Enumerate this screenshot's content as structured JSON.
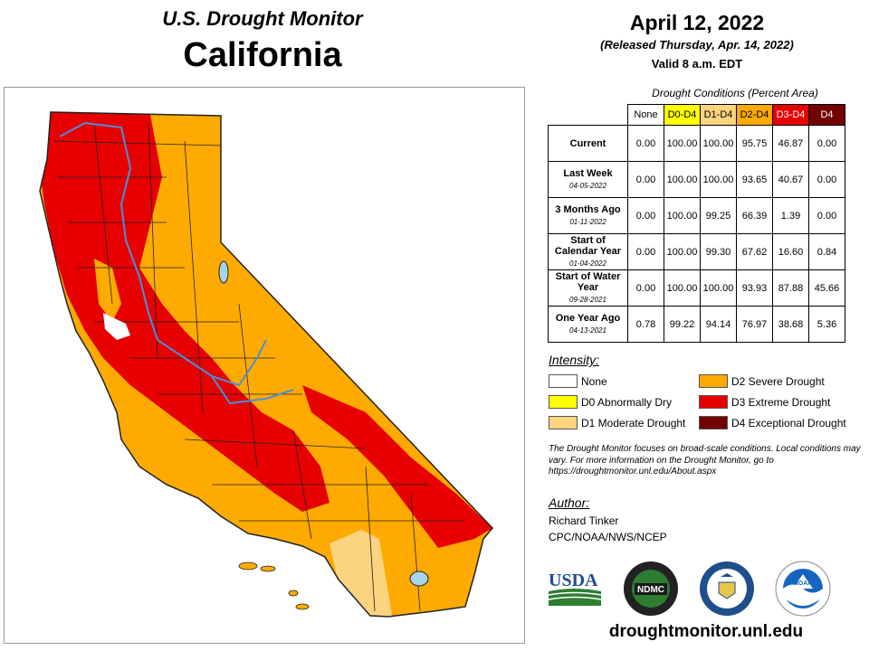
{
  "header": {
    "subtitle": "U.S. Drought Monitor",
    "state": "California",
    "date": "April 12, 2022",
    "released": "(Released Thursday, Apr. 14, 2022)",
    "valid": "Valid 8 a.m. EDT"
  },
  "table": {
    "caption": "Drought Conditions (Percent Area)",
    "columns": [
      {
        "label": "None",
        "bg": "#ffffff",
        "fg": "#000000"
      },
      {
        "label": "D0-D4",
        "bg": "#ffff00",
        "fg": "#000000"
      },
      {
        "label": "D1-D4",
        "bg": "#fcd37f",
        "fg": "#000000"
      },
      {
        "label": "D2-D4",
        "bg": "#ffaa00",
        "fg": "#000000"
      },
      {
        "label": "D3-D4",
        "bg": "#e60000",
        "fg": "#ffffff"
      },
      {
        "label": "D4",
        "bg": "#730000",
        "fg": "#ffffff"
      }
    ],
    "rows": [
      {
        "label": "Current",
        "date": "",
        "values": [
          "0.00",
          "100.00",
          "100.00",
          "95.75",
          "46.87",
          "0.00"
        ]
      },
      {
        "label": "Last Week",
        "date": "04-05-2022",
        "values": [
          "0.00",
          "100.00",
          "100.00",
          "93.65",
          "40.67",
          "0.00"
        ]
      },
      {
        "label": "3 Months Ago",
        "date": "01-11-2022",
        "values": [
          "0.00",
          "100.00",
          "99.25",
          "66.39",
          "1.39",
          "0.00"
        ]
      },
      {
        "label": "Start of Calendar Year",
        "date": "01-04-2022",
        "values": [
          "0.00",
          "100.00",
          "99.30",
          "67.62",
          "16.60",
          "0.84"
        ]
      },
      {
        "label": "Start of Water Year",
        "date": "09-28-2021",
        "values": [
          "0.00",
          "100.00",
          "100.00",
          "93.93",
          "87.88",
          "45.66"
        ]
      },
      {
        "label": "One Year Ago",
        "date": "04-13-2021",
        "values": [
          "0.78",
          "99.22",
          "94.14",
          "76.97",
          "38.68",
          "5.36"
        ]
      }
    ]
  },
  "legend": {
    "title": "Intensity:",
    "items": [
      {
        "label": "None",
        "color": "#ffffff"
      },
      {
        "label": "D0 Abnormally Dry",
        "color": "#ffff00"
      },
      {
        "label": "D1 Moderate Drought",
        "color": "#fcd37f"
      },
      {
        "label": "D2 Severe Drought",
        "color": "#ffaa00"
      },
      {
        "label": "D3 Extreme Drought",
        "color": "#e60000"
      },
      {
        "label": "D4 Exceptional Drought",
        "color": "#730000"
      }
    ]
  },
  "note": "The Drought Monitor focuses on broad-scale conditions. Local conditions may vary. For more information on the Drought Monitor, go to https://droughtmonitor.unl.edu/About.aspx",
  "author": {
    "title": "Author:",
    "name": "Richard Tinker",
    "org": "CPC/NOAA/NWS/NCEP"
  },
  "logos": {
    "usda": "USDA",
    "ndmc": "NDMC",
    "noaa": "NOAA"
  },
  "website": "droughtmonitor.unl.edu",
  "map": {
    "colors": {
      "d1": "#fcd37f",
      "d2": "#ffaa00",
      "d3": "#e60000",
      "water": "#a8d4ea",
      "river": "#4a90d9",
      "border": "#222222"
    }
  }
}
